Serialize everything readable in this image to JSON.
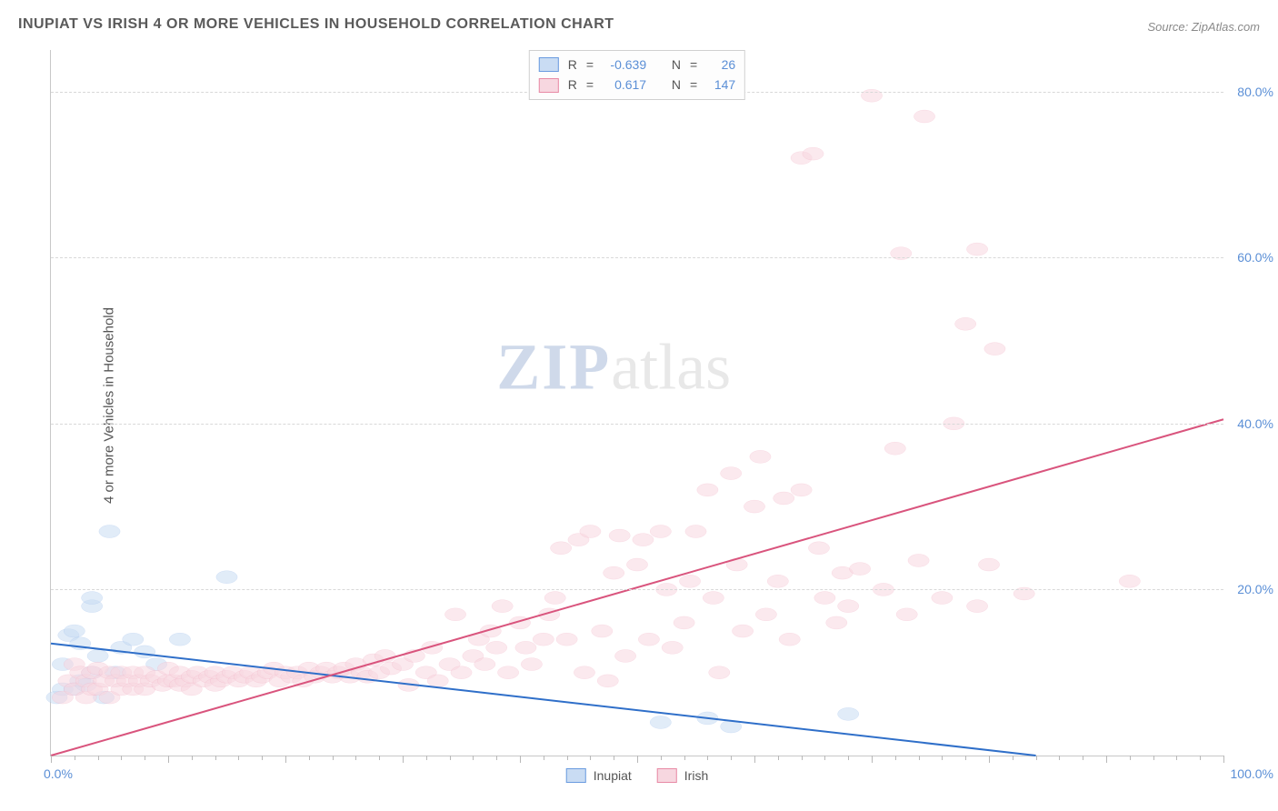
{
  "title": "INUPIAT VS IRISH 4 OR MORE VEHICLES IN HOUSEHOLD CORRELATION CHART",
  "source": "Source: ZipAtlas.com",
  "y_axis_label": "4 or more Vehicles in Household",
  "watermark_zip": "ZIP",
  "watermark_atlas": "atlas",
  "chart": {
    "type": "scatter",
    "xlim": [
      0,
      100
    ],
    "ylim": [
      0,
      85
    ],
    "x_tick_labels": [
      {
        "pos": 0,
        "text": "0.0%"
      },
      {
        "pos": 100,
        "text": "100.0%"
      }
    ],
    "y_tick_labels": [
      {
        "pos": 20,
        "text": "20.0%"
      },
      {
        "pos": 40,
        "text": "40.0%"
      },
      {
        "pos": 60,
        "text": "60.0%"
      },
      {
        "pos": 80,
        "text": "80.0%"
      }
    ],
    "x_minor_tick_step": 2,
    "grid_lines_y": [
      20,
      40,
      60,
      80
    ],
    "grid_color": "#d8d8d8",
    "background_color": "#ffffff",
    "marker_radius": 8,
    "marker_stroke_width": 1.2,
    "line_width": 2,
    "label_fontsize": 14,
    "title_fontsize": 16
  },
  "series": [
    {
      "name": "Inupiat",
      "fill": "#c9dcf3",
      "stroke": "#6a9be0",
      "line_color": "#2f6fc9",
      "R": "-0.639",
      "N": "26",
      "trend": {
        "x1": 0,
        "y1": 13.5,
        "x2": 84,
        "y2": 0
      },
      "points": [
        [
          0.5,
          7
        ],
        [
          1,
          8
        ],
        [
          1,
          11
        ],
        [
          1.5,
          14.5
        ],
        [
          2,
          15
        ],
        [
          2,
          8
        ],
        [
          2.5,
          9
        ],
        [
          2.5,
          13.5
        ],
        [
          3,
          8.5
        ],
        [
          3.5,
          10
        ],
        [
          3.5,
          18
        ],
        [
          3.5,
          19
        ],
        [
          4,
          12
        ],
        [
          4.5,
          7
        ],
        [
          5,
          27
        ],
        [
          5.5,
          10
        ],
        [
          6,
          13
        ],
        [
          7,
          14
        ],
        [
          8,
          12.5
        ],
        [
          9,
          11
        ],
        [
          11,
          14
        ],
        [
          15,
          21.5
        ],
        [
          52,
          4
        ],
        [
          56,
          4.5
        ],
        [
          58,
          3.5
        ],
        [
          68,
          5
        ]
      ]
    },
    {
      "name": "Irish",
      "fill": "#f7d7e0",
      "stroke": "#e88aa5",
      "line_color": "#d9547d",
      "R": "0.617",
      "N": "147",
      "trend": {
        "x1": 0,
        "y1": 0,
        "x2": 100,
        "y2": 40.5
      },
      "points": [
        [
          1,
          7
        ],
        [
          1.5,
          9
        ],
        [
          2,
          11
        ],
        [
          2,
          8
        ],
        [
          2.5,
          10
        ],
        [
          3,
          7
        ],
        [
          3,
          9
        ],
        [
          3.5,
          8
        ],
        [
          3.5,
          10
        ],
        [
          4,
          10.5
        ],
        [
          4,
          8
        ],
        [
          4.5,
          9
        ],
        [
          5,
          7
        ],
        [
          5,
          10
        ],
        [
          5.5,
          9
        ],
        [
          6,
          10
        ],
        [
          6,
          8
        ],
        [
          6.5,
          9
        ],
        [
          7,
          8
        ],
        [
          7,
          10
        ],
        [
          7.5,
          9
        ],
        [
          8,
          8
        ],
        [
          8,
          10
        ],
        [
          8.5,
          9
        ],
        [
          9,
          9.5
        ],
        [
          9.5,
          8.5
        ],
        [
          10,
          9
        ],
        [
          10,
          10.5
        ],
        [
          10.5,
          9
        ],
        [
          11,
          8.5
        ],
        [
          11,
          10
        ],
        [
          11.5,
          9
        ],
        [
          12,
          9.5
        ],
        [
          12,
          8
        ],
        [
          12.5,
          10
        ],
        [
          13,
          9
        ],
        [
          13.5,
          9.5
        ],
        [
          14,
          8.5
        ],
        [
          14,
          10
        ],
        [
          14.5,
          9
        ],
        [
          15,
          9.5
        ],
        [
          15.5,
          10
        ],
        [
          16,
          9
        ],
        [
          16.5,
          9.5
        ],
        [
          17,
          10
        ],
        [
          17.5,
          9
        ],
        [
          18,
          9.5
        ],
        [
          18.5,
          10
        ],
        [
          19,
          10.5
        ],
        [
          19.5,
          9
        ],
        [
          20,
          10
        ],
        [
          20.5,
          9.5
        ],
        [
          21,
          10
        ],
        [
          21.5,
          9
        ],
        [
          22,
          10.5
        ],
        [
          22.5,
          9.5
        ],
        [
          23,
          10
        ],
        [
          23.5,
          10.5
        ],
        [
          24,
          9.5
        ],
        [
          24.5,
          10
        ],
        [
          25,
          10.5
        ],
        [
          25.5,
          9.5
        ],
        [
          26,
          11
        ],
        [
          26.5,
          10
        ],
        [
          27,
          9.5
        ],
        [
          27.5,
          11.5
        ],
        [
          28,
          10
        ],
        [
          28.5,
          12
        ],
        [
          29,
          10.5
        ],
        [
          30,
          11
        ],
        [
          30.5,
          8.5
        ],
        [
          31,
          12
        ],
        [
          32,
          10
        ],
        [
          32.5,
          13
        ],
        [
          33,
          9
        ],
        [
          34,
          11
        ],
        [
          34.5,
          17
        ],
        [
          35,
          10
        ],
        [
          36,
          12
        ],
        [
          36.5,
          14
        ],
        [
          37,
          11
        ],
        [
          37.5,
          15
        ],
        [
          38,
          13
        ],
        [
          38.5,
          18
        ],
        [
          39,
          10
        ],
        [
          40,
          16
        ],
        [
          40.5,
          13
        ],
        [
          41,
          11
        ],
        [
          42,
          14
        ],
        [
          42.5,
          17
        ],
        [
          43,
          19
        ],
        [
          43.5,
          25
        ],
        [
          44,
          14
        ],
        [
          45,
          26
        ],
        [
          45.5,
          10
        ],
        [
          46,
          27
        ],
        [
          47,
          15
        ],
        [
          47.5,
          9
        ],
        [
          48,
          22
        ],
        [
          48.5,
          26.5
        ],
        [
          49,
          12
        ],
        [
          50,
          23
        ],
        [
          50.5,
          26
        ],
        [
          51,
          14
        ],
        [
          52,
          27
        ],
        [
          52.5,
          20
        ],
        [
          53,
          13
        ],
        [
          54,
          16
        ],
        [
          54.5,
          21
        ],
        [
          55,
          27
        ],
        [
          56,
          32
        ],
        [
          56.5,
          19
        ],
        [
          57,
          10
        ],
        [
          58,
          34
        ],
        [
          58.5,
          23
        ],
        [
          59,
          15
        ],
        [
          60,
          30
        ],
        [
          60.5,
          36
        ],
        [
          61,
          17
        ],
        [
          62,
          21
        ],
        [
          62.5,
          31
        ],
        [
          63,
          14
        ],
        [
          64,
          32
        ],
        [
          64,
          72
        ],
        [
          65,
          72.5
        ],
        [
          65.5,
          25
        ],
        [
          66,
          19
        ],
        [
          67,
          16
        ],
        [
          67.5,
          22
        ],
        [
          68,
          18
        ],
        [
          69,
          22.5
        ],
        [
          70,
          79.5
        ],
        [
          71,
          20
        ],
        [
          72,
          37
        ],
        [
          72.5,
          60.5
        ],
        [
          73,
          17
        ],
        [
          74,
          23.5
        ],
        [
          74.5,
          77
        ],
        [
          76,
          19
        ],
        [
          77,
          40
        ],
        [
          78,
          52
        ],
        [
          79,
          61
        ],
        [
          79,
          18
        ],
        [
          80,
          23
        ],
        [
          80.5,
          49
        ],
        [
          83,
          19.5
        ],
        [
          92,
          21
        ]
      ]
    }
  ],
  "stats_labels": {
    "R": "R",
    "eq": "=",
    "N": "N"
  },
  "legend_bottom_label_1": "Inupiat",
  "legend_bottom_label_2": "Irish"
}
